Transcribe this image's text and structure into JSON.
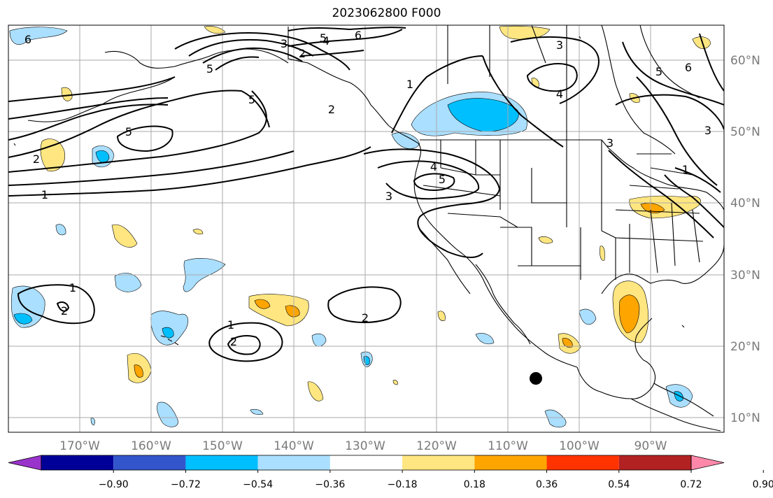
{
  "title": "2023062800 F000",
  "palette": {
    "purple": "#9933cc",
    "navy": "#000099",
    "blue": "#3355cc",
    "deepsky": "#00bfff",
    "lightblue": "#aadfff",
    "white": "#ffffff",
    "yellow": "#ffe680",
    "orange": "#ffa500",
    "redorange": "#ff3300",
    "firebrick": "#b22222",
    "pink": "#ff88aa"
  },
  "lat_ticks": [
    "60°N",
    "50°N",
    "40°N",
    "30°N",
    "20°N",
    "10°N"
  ],
  "lon_ticks": [
    "170°W",
    "160°W",
    "150°W",
    "140°W",
    "130°W",
    "120°W",
    "110°W",
    "100°W",
    "90°W"
  ],
  "colorbar": {
    "bins": [
      "#9933cc",
      "#000099",
      "#3355cc",
      "#00bfff",
      "#aadfff",
      "#ffffff",
      "#ffe680",
      "#ffa500",
      "#ff3300",
      "#b22222",
      "#ff88aa"
    ],
    "tick_labels": [
      "−0.90",
      "−0.72",
      "−0.54",
      "−0.36",
      "−0.18",
      "0.18",
      "0.36",
      "0.54",
      "0.72",
      "0.90"
    ]
  },
  "contour_labels": [
    "6",
    "5",
    "6",
    "3",
    "2",
    "5",
    "4",
    "1",
    "3",
    "4",
    "6",
    "5",
    "5",
    "2",
    "2",
    "5",
    "1",
    "3",
    "4",
    "5",
    "3",
    "3",
    "2",
    "1",
    "2",
    "1",
    "2",
    "1"
  ],
  "marker": "storm-center"
}
